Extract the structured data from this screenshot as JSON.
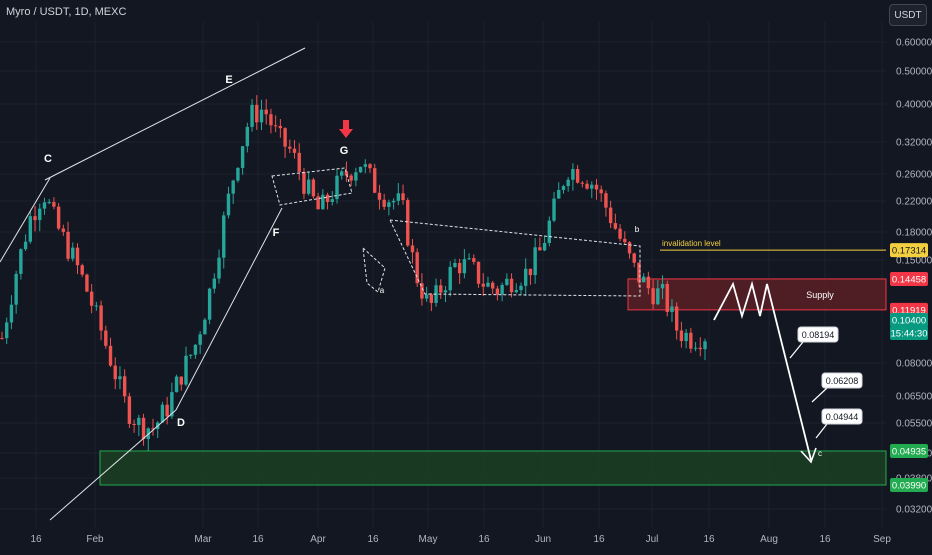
{
  "header": {
    "title": "Myro / USDT, 1D, MEXC"
  },
  "currency_button": "USDT",
  "colors": {
    "bg": "#131722",
    "up": "#26a69a",
    "down": "#ef5350",
    "grid": "#1e222d",
    "supply": "#5a1e24",
    "demand": "#1b3d24",
    "invalidation": "#f4d03f",
    "supply_label_bg": "#f23645",
    "demand_label_bg": "#22ab50",
    "price_label_bg": "#089981"
  },
  "chart_data": {
    "type": "candlestick",
    "title": "Myro / USDT, 1D, MEXC",
    "y_scale": "log",
    "ylim": [
      0.0305,
      0.72
    ],
    "x_tick_labels": [
      "16",
      "Feb",
      "Mar",
      "16",
      "Apr",
      "16",
      "May",
      "16",
      "Jun",
      "16",
      "Jul",
      "16",
      "Aug",
      "16",
      "Sep"
    ],
    "y_tick_labels": [
      "0.60000",
      "0.50000",
      "0.40000",
      "0.32000",
      "0.26000",
      "0.22000",
      "0.18000",
      "0.15000",
      "0.08000",
      "0.06500",
      "0.05500",
      "0.04500",
      "0.03800",
      "0.03200"
    ],
    "price_labels": [
      {
        "value": "0.17314",
        "kind": "invalidation"
      },
      {
        "value": "0.14458",
        "kind": "supply"
      },
      {
        "value": "0.11919",
        "kind": "supply"
      },
      {
        "value": "0.10400",
        "kind": "current"
      },
      {
        "value": "15:44:30",
        "kind": "countdown"
      },
      {
        "value": "0.04935",
        "kind": "demand"
      },
      {
        "value": "0.03990",
        "kind": "demand"
      }
    ],
    "zones": [
      {
        "name": "Supply",
        "top": 0.14458,
        "bottom": 0.11919
      },
      {
        "name": "",
        "top": 0.04935,
        "bottom": 0.0399
      }
    ],
    "invalidation": {
      "label": "invalidation level",
      "value": 0.17314
    },
    "wave_labels": [
      "C",
      "D",
      "E",
      "F",
      "G",
      "a",
      "b",
      "c"
    ],
    "target_labels": [
      "0.08194",
      "0.06208",
      "0.04944"
    ],
    "series": [
      {
        "trend": [
          0.1,
          0.15,
          0.21,
          0.25,
          0.2,
          0.17,
          0.14,
          0.11,
          0.085,
          0.065,
          0.058,
          0.057,
          0.065,
          0.08,
          0.095,
          0.13,
          0.2,
          0.3,
          0.4,
          0.42,
          0.35,
          0.32,
          0.26,
          0.22,
          0.25,
          0.28,
          0.3,
          0.26,
          0.24,
          0.23,
          0.15,
          0.12,
          0.14,
          0.16,
          0.155,
          0.14,
          0.135,
          0.145,
          0.15,
          0.17,
          0.22,
          0.29,
          0.28,
          0.26,
          0.22,
          0.18,
          0.15,
          0.135,
          0.13,
          0.105,
          0.1,
          0.102
        ]
      }
    ]
  }
}
